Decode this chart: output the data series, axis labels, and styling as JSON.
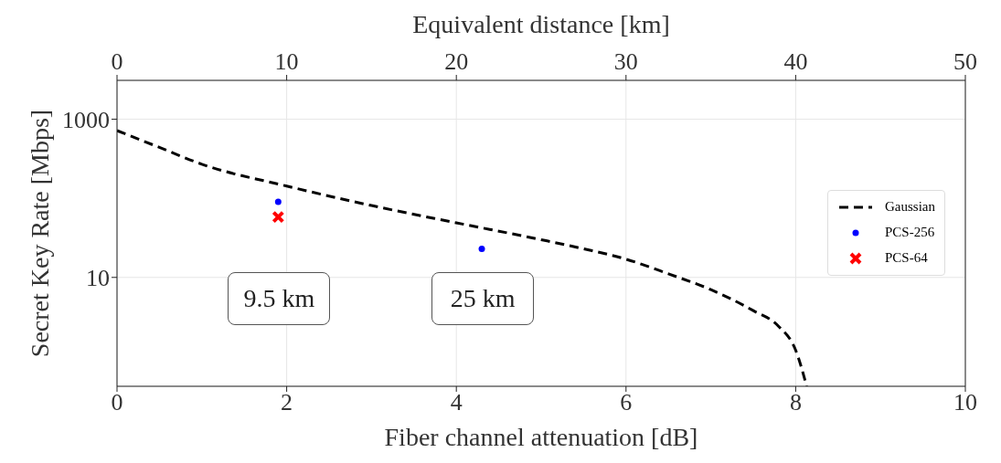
{
  "chart_data": {
    "type": "line",
    "xlabel": "Fiber channel attenuation [dB]",
    "ylabel": "Secret Key Rate [Mbps]",
    "x2label": "Equivalent distance [km]",
    "xlim": [
      0,
      10
    ],
    "xticks": [
      0,
      2,
      4,
      6,
      8,
      10
    ],
    "x2lim": [
      0,
      50
    ],
    "x2ticks": [
      0,
      10,
      20,
      30,
      40,
      50
    ],
    "ylim": [
      0.42,
      3100
    ],
    "yticks": [
      10,
      1000
    ],
    "log": true,
    "grid": true,
    "legend": "right",
    "series": [
      {
        "name": "Gaussian",
        "color": "#000000",
        "line_style": "dashed",
        "marker": "none",
        "x": [
          0,
          0.5,
          1,
          2,
          3,
          4,
          5,
          5.5,
          6,
          6.5,
          7,
          7.5,
          7.8,
          8,
          8.13
        ],
        "values": [
          718,
          440,
          270,
          143,
          81,
          49,
          30,
          23,
          17,
          11.1,
          7,
          3.8,
          2.4,
          1.2,
          0.42
        ]
      },
      {
        "name": "PCS-256",
        "type": "scatter",
        "color": "#0000ff",
        "marker": "circle",
        "x": [
          1.9,
          4.3
        ],
        "values": [
          90,
          23
        ]
      },
      {
        "name": "PCS-64",
        "type": "scatter",
        "color": "#ff0000",
        "marker": "cross",
        "x": [
          1.9
        ],
        "values": [
          58
        ]
      }
    ],
    "annotations": [
      "9.5 km",
      "25 km"
    ]
  }
}
